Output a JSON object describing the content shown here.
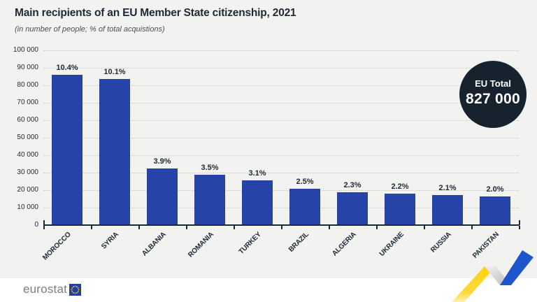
{
  "title": "Main recipients of an EU Member State citizenship, 2021",
  "subtitle": "(in number of people; % of total acquistions)",
  "badge": {
    "label": "EU Total",
    "value": "827 000"
  },
  "footer": {
    "logo_text": "eurostat"
  },
  "colors": {
    "bar": "#2644a7",
    "background": "#f2f2f1",
    "badge_background": "#16222d",
    "axis": "#1e2936",
    "ribbon_yellow": "#ffd10a",
    "ribbon_blue": "#1f55cb",
    "eu_flag_blue": "#243e9b",
    "eu_flag_stars": "#ffd617"
  },
  "chart_data": {
    "type": "bar",
    "title": "Main recipients of an EU Member State citizenship, 2021",
    "subtitle": "(in number of people; % of total acquistions)",
    "categories": [
      "MOROCCO",
      "SYRIA",
      "ALBANIA",
      "ROMANIA",
      "TURKEY",
      "BRAZIL",
      "ALGERIA",
      "UKRAINE",
      "RUSSIA",
      "PAKISTAN"
    ],
    "values": [
      86000,
      83500,
      32300,
      28900,
      25600,
      20700,
      19000,
      18200,
      17400,
      16500
    ],
    "data_labels": [
      "10.4%",
      "10.1%",
      "3.9%",
      "3.5%",
      "3.1%",
      "2.5%",
      "2.3%",
      "2.2%",
      "2.1%",
      "2.0%"
    ],
    "xlabel": "",
    "ylabel": "",
    "ylim": [
      0,
      100000
    ],
    "yticks": [
      "100 000",
      "90 000",
      "80 000",
      "70 000",
      "60 000",
      "50 000",
      "40 000",
      "30 000",
      "20 000",
      "10 000",
      "0"
    ],
    "grid": "horizontal-dotted",
    "legend": "none",
    "eu_total": "827 000"
  }
}
